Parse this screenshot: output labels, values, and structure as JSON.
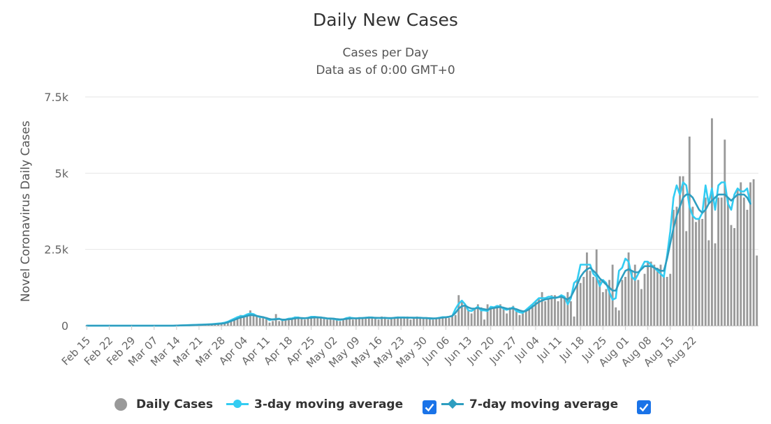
{
  "colors": {
    "bar": "#999999",
    "ma3": "#33ccf2",
    "ma7": "#2e9ec0",
    "grid": "#e6e6e6",
    "axis_text": "#666666",
    "checkbox": "#1a73e8"
  },
  "chart_data": {
    "type": "bar",
    "title": "Daily New Cases",
    "subtitle": [
      "Cases per Day",
      "Data as of 0:00 GMT+0"
    ],
    "ylabel": "Novel Coronavirus Daily Cases",
    "xlabel": "",
    "ylim": [
      0,
      7500
    ],
    "yticks": [
      0,
      2500,
      5000,
      7500
    ],
    "ytick_labels": [
      "0",
      "2.5k",
      "5k",
      "7.5k"
    ],
    "start_date": "Feb 15",
    "xtick_labels": [
      "Feb 15",
      "Feb 22",
      "Feb 29",
      "Mar 07",
      "Mar 14",
      "Mar 21",
      "Mar 28",
      "Apr 04",
      "Apr 11",
      "Apr 18",
      "Apr 25",
      "May 02",
      "May 09",
      "May 16",
      "May 23",
      "May 30",
      "Jun 06",
      "Jun 13",
      "Jun 20",
      "Jun 27",
      "Jul 04",
      "Jul 11",
      "Jul 18",
      "Jul 25",
      "Aug 01",
      "Aug 08",
      "Aug 15",
      "Aug 22"
    ],
    "legend": [
      "Daily Cases",
      "3-day moving average",
      "7-day moving average"
    ],
    "series": [
      {
        "name": "Daily Cases",
        "values": [
          0,
          0,
          0,
          0,
          0,
          0,
          0,
          0,
          0,
          0,
          0,
          0,
          0,
          0,
          0,
          0,
          0,
          0,
          0,
          0,
          0,
          0,
          0,
          0,
          0,
          0,
          0,
          0,
          5,
          10,
          10,
          15,
          20,
          25,
          30,
          30,
          35,
          40,
          40,
          50,
          60,
          70,
          80,
          100,
          150,
          200,
          250,
          300,
          350,
          280,
          350,
          500,
          400,
          300,
          250,
          300,
          280,
          100,
          150,
          380,
          150,
          200,
          220,
          180,
          250,
          300,
          280,
          250,
          200,
          280,
          300,
          320,
          250,
          300,
          280,
          200,
          220,
          250,
          180,
          150,
          220,
          260,
          300,
          200,
          250,
          280,
          230,
          260,
          300,
          280,
          250,
          200,
          300,
          250,
          200,
          250,
          280,
          300,
          250,
          280,
          300,
          200,
          280,
          300,
          250,
          230,
          270,
          250,
          200,
          230,
          250,
          300,
          280,
          250,
          300,
          350,
          1000,
          800,
          650,
          500,
          400,
          550,
          700,
          600,
          200,
          700,
          550,
          600,
          650,
          700,
          550,
          400,
          600,
          650,
          550,
          350,
          400,
          500,
          600,
          700,
          800,
          900,
          1100,
          800,
          900,
          1000,
          1000,
          800,
          1000,
          900,
          1100,
          800,
          300,
          1500,
          1400,
          1600,
          2400,
          1800,
          1600,
          2500,
          1500,
          1100,
          1200,
          1500,
          2000,
          600,
          500,
          1500,
          1600,
          2400,
          1800,
          2000,
          1500,
          1200,
          1700,
          2100,
          2100,
          2000,
          1900,
          2000,
          1600,
          1600,
          1700,
          3800,
          3900,
          4900,
          4900,
          3100,
          6200,
          3900,
          3400,
          3500,
          3500,
          4200,
          2800,
          6800,
          2700,
          4200,
          4200,
          6100,
          4200,
          3300,
          3200,
          4500,
          4700,
          4200,
          3800,
          4700,
          4800,
          2300
        ]
      },
      {
        "name": "3-day moving average",
        "values": [
          0,
          0,
          0,
          0,
          0,
          0,
          0,
          0,
          0,
          0,
          0,
          0,
          0,
          0,
          0,
          0,
          0,
          0,
          0,
          0,
          0,
          0,
          0,
          0,
          0,
          0,
          0,
          0,
          5,
          8,
          12,
          15,
          20,
          25,
          28,
          32,
          35,
          40,
          44,
          50,
          60,
          70,
          80,
          100,
          130,
          180,
          230,
          280,
          310,
          320,
          370,
          400,
          380,
          320,
          280,
          280,
          240,
          180,
          210,
          220,
          230,
          180,
          200,
          230,
          240,
          270,
          270,
          240,
          240,
          260,
          290,
          290,
          280,
          270,
          250,
          230,
          230,
          220,
          200,
          190,
          210,
          250,
          260,
          250,
          240,
          250,
          250,
          260,
          270,
          270,
          250,
          250,
          250,
          260,
          240,
          240,
          260,
          270,
          270,
          270,
          260,
          260,
          260,
          260,
          260,
          250,
          250,
          230,
          230,
          240,
          260,
          280,
          280,
          290,
          320,
          550,
          720,
          820,
          700,
          500,
          480,
          550,
          620,
          500,
          500,
          480,
          620,
          600,
          650,
          630,
          550,
          520,
          560,
          600,
          480,
          440,
          420,
          520,
          610,
          700,
          800,
          900,
          900,
          900,
          950,
          950,
          900,
          930,
          1000,
          950,
          700,
          900,
          1400,
          1500,
          2000,
          2000,
          2000,
          2000,
          1700,
          1600,
          1300,
          1500,
          1400,
          1100,
          850,
          900,
          1800,
          1900,
          2200,
          2100,
          1600,
          1500,
          1700,
          1900,
          2100,
          2100,
          2000,
          1900,
          1800,
          1700,
          1600,
          2300,
          3100,
          4200,
          4600,
          4300,
          4700,
          4600,
          3900,
          3600,
          3500,
          3500,
          3700,
          4600,
          4000,
          4500,
          3800,
          4600,
          4700,
          4700,
          4000,
          3800,
          4300,
          4500,
          4400,
          4400,
          4500,
          4000
        ]
      },
      {
        "name": "7-day moving average",
        "values": [
          0,
          0,
          0,
          0,
          0,
          0,
          0,
          0,
          0,
          0,
          0,
          0,
          0,
          0,
          0,
          0,
          0,
          0,
          0,
          0,
          0,
          0,
          0,
          0,
          0,
          0,
          0,
          0,
          4,
          6,
          9,
          11,
          14,
          18,
          22,
          26,
          30,
          34,
          38,
          42,
          50,
          58,
          66,
          80,
          110,
          150,
          190,
          230,
          270,
          290,
          320,
          350,
          340,
          320,
          300,
          280,
          250,
          220,
          200,
          210,
          220,
          200,
          200,
          210,
          220,
          240,
          250,
          250,
          245,
          250,
          260,
          270,
          270,
          265,
          255,
          240,
          235,
          230,
          215,
          205,
          210,
          225,
          235,
          240,
          240,
          245,
          250,
          255,
          260,
          262,
          258,
          255,
          255,
          255,
          250,
          250,
          255,
          260,
          262,
          265,
          262,
          260,
          258,
          256,
          255,
          252,
          250,
          245,
          240,
          242,
          250,
          265,
          275,
          290,
          320,
          420,
          560,
          640,
          660,
          600,
          560,
          560,
          580,
          560,
          540,
          520,
          560,
          580,
          600,
          610,
          590,
          560,
          550,
          570,
          540,
          500,
          470,
          480,
          540,
          620,
          700,
          780,
          820,
          860,
          880,
          900,
          920,
          930,
          950,
          900,
          860,
          950,
          1150,
          1350,
          1600,
          1750,
          1850,
          1900,
          1800,
          1700,
          1550,
          1450,
          1350,
          1250,
          1150,
          1150,
          1400,
          1600,
          1800,
          1850,
          1800,
          1750,
          1750,
          1850,
          1950,
          1950,
          1950,
          1900,
          1850,
          1800,
          1800,
          2200,
          2700,
          3200,
          3600,
          3900,
          4200,
          4300,
          4300,
          4200,
          4000,
          3800,
          3700,
          3800,
          4000,
          4100,
          4200,
          4300,
          4300,
          4300,
          4200,
          4100,
          4200,
          4300,
          4300,
          4300,
          4200,
          4000
        ]
      }
    ]
  }
}
